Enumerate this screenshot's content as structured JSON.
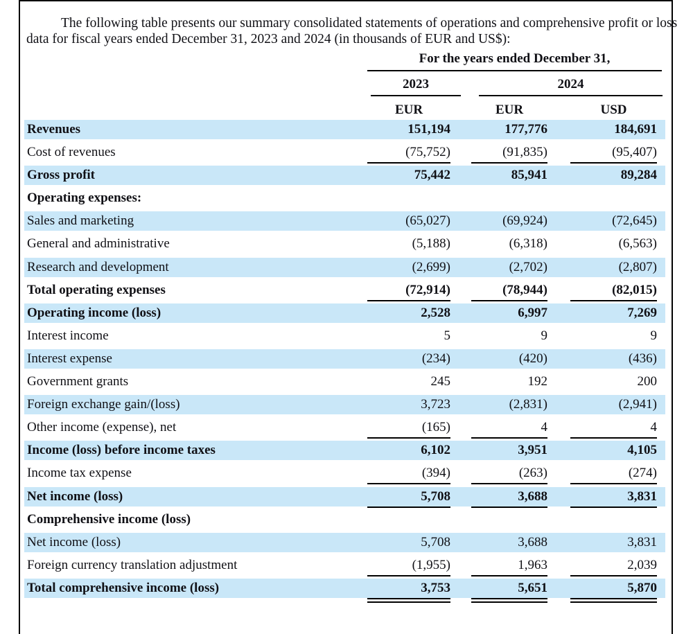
{
  "intro": "The following table presents our summary consolidated statements of operations and comprehensive profit or loss data for fiscal years ended December 31, 2023 and 2024 (in thousands of EUR and US$):",
  "colors": {
    "row_highlight": "#c9e7f8",
    "text": "#101015",
    "rule": "#000000"
  },
  "table": {
    "header": {
      "title": "For the years ended December 31,",
      "years": [
        "2023",
        "2024"
      ],
      "currencies": [
        "EUR",
        "EUR",
        "USD"
      ]
    },
    "rows": [
      {
        "label": "Revenues",
        "values": [
          "151,194",
          "177,776",
          "184,691"
        ],
        "bold": true,
        "bg": "blue",
        "underline": "none"
      },
      {
        "label": "Cost of revenues",
        "values": [
          "(75,752)",
          "(91,835)",
          "(95,407)"
        ],
        "bold": false,
        "bg": "white",
        "underline": "single"
      },
      {
        "label": "Gross profit",
        "values": [
          "75,442",
          "85,941",
          "89,284"
        ],
        "bold": true,
        "bg": "blue",
        "underline": "none"
      },
      {
        "label": "Operating expenses:",
        "values": [
          "",
          "",
          ""
        ],
        "bold": true,
        "bg": "white",
        "underline": "none"
      },
      {
        "label": "Sales and marketing",
        "values": [
          "(65,027)",
          "(69,924)",
          "(72,645)"
        ],
        "bold": false,
        "bg": "blue",
        "underline": "none"
      },
      {
        "label": "General and administrative",
        "values": [
          "(5,188)",
          "(6,318)",
          "(6,563)"
        ],
        "bold": false,
        "bg": "white",
        "underline": "none"
      },
      {
        "label": "Research and development",
        "values": [
          "(2,699)",
          "(2,702)",
          "(2,807)"
        ],
        "bold": false,
        "bg": "blue",
        "underline": "none"
      },
      {
        "label": "Total operating expenses",
        "values": [
          "(72,914)",
          "(78,944)",
          "(82,015)"
        ],
        "bold": true,
        "bg": "white",
        "underline": "single"
      },
      {
        "label": "Operating income (loss)",
        "values": [
          "2,528",
          "6,997",
          "7,269"
        ],
        "bold": true,
        "bg": "blue",
        "underline": "none"
      },
      {
        "label": "Interest income",
        "values": [
          "5",
          "9",
          "9"
        ],
        "bold": false,
        "bg": "white",
        "underline": "none"
      },
      {
        "label": "Interest expense",
        "values": [
          "(234)",
          "(420)",
          "(436)"
        ],
        "bold": false,
        "bg": "blue",
        "underline": "none"
      },
      {
        "label": "Government grants",
        "values": [
          "245",
          "192",
          "200"
        ],
        "bold": false,
        "bg": "white",
        "underline": "none"
      },
      {
        "label": "Foreign exchange gain/(loss)",
        "values": [
          "3,723",
          "(2,831)",
          "(2,941)"
        ],
        "bold": false,
        "bg": "blue",
        "underline": "none"
      },
      {
        "label": "Other income (expense), net",
        "values": [
          "(165)",
          "4",
          "4"
        ],
        "bold": false,
        "bg": "white",
        "underline": "single"
      },
      {
        "label": "Income (loss) before income taxes",
        "values": [
          "6,102",
          "3,951",
          "4,105"
        ],
        "bold": true,
        "bg": "blue",
        "underline": "none"
      },
      {
        "label": "Income tax expense",
        "values": [
          "(394)",
          "(263)",
          "(274)"
        ],
        "bold": false,
        "bg": "white",
        "underline": "single"
      },
      {
        "label": "Net income (loss)",
        "values": [
          "5,708",
          "3,688",
          "3,831"
        ],
        "bold": true,
        "bg": "blue",
        "underline": "single"
      },
      {
        "label": "Comprehensive income (loss)",
        "values": [
          "",
          "",
          ""
        ],
        "bold": true,
        "bg": "white",
        "underline": "none"
      },
      {
        "label": "Net income (loss)",
        "values": [
          "5,708",
          "3,688",
          "3,831"
        ],
        "bold": false,
        "bg": "blue",
        "underline": "none"
      },
      {
        "label": "Foreign currency translation adjustment",
        "values": [
          "(1,955)",
          "1,963",
          "2,039"
        ],
        "bold": false,
        "bg": "white",
        "underline": "single"
      },
      {
        "label": "Total comprehensive income (loss)",
        "values": [
          "3,753",
          "5,651",
          "5,870"
        ],
        "bold": true,
        "bg": "blue",
        "underline": "double"
      }
    ]
  }
}
